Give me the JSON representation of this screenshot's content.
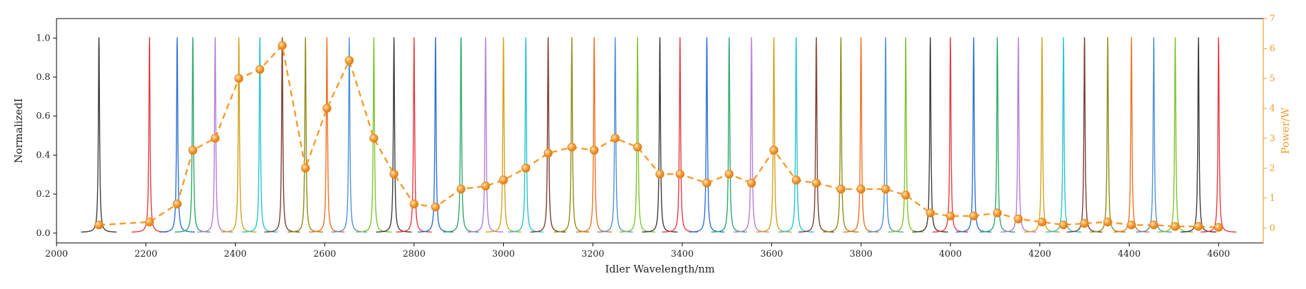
{
  "chart_data": {
    "type": "line",
    "xlabel": "Idler Wavelength/nm",
    "ylabel": "NormalizedI",
    "ylabel_right": "Power/W",
    "xlim": [
      2000,
      4700
    ],
    "ylim": [
      -0.05,
      1.1
    ],
    "ylim_right": [
      -0.5,
      7
    ],
    "x_ticks": [
      2000,
      2200,
      2400,
      2600,
      2800,
      3000,
      3200,
      3400,
      3600,
      3800,
      4000,
      4200,
      4400,
      4600
    ],
    "y_ticks": [
      0.0,
      0.2,
      0.4,
      0.6,
      0.8,
      1.0
    ],
    "y_ticks_right": [
      0,
      1,
      2,
      3,
      4,
      5,
      6,
      7
    ],
    "grid": false,
    "right_axis_color": "#f59a2a",
    "spectra": {
      "peak_wavelengths": [
        2095,
        2208,
        2270,
        2305,
        2355,
        2408,
        2455,
        2505,
        2557,
        2605,
        2655,
        2710,
        2755,
        2800,
        2848,
        2905,
        2960,
        3000,
        3050,
        3100,
        3153,
        3203,
        3250,
        3300,
        3350,
        3395,
        3455,
        3505,
        3555,
        3605,
        3655,
        3700,
        3755,
        3800,
        3855,
        3900,
        3955,
        4000,
        4052,
        4105,
        4152,
        4205,
        4253,
        4300,
        4352,
        4405,
        4455,
        4503,
        4555,
        4600
      ],
      "peak_heights": [
        1,
        1,
        1,
        1,
        1,
        1,
        1,
        1,
        1,
        1,
        1,
        1,
        1,
        1,
        1,
        1,
        1,
        1,
        1,
        1,
        1,
        1,
        1,
        1,
        1,
        1,
        1,
        1,
        1,
        1,
        1,
        1,
        1,
        1,
        1,
        1,
        1,
        1,
        1,
        1,
        1,
        1,
        1,
        1,
        1,
        1,
        1,
        1,
        1,
        1
      ],
      "colors": [
        "#3b3b3b",
        "#e8383d",
        "#2a6fd6",
        "#2aa86a",
        "#b57ad6",
        "#d4a017",
        "#22c3cf",
        "#7a3b2e",
        "#8c8c18",
        "#f0701d",
        "#4a90d9",
        "#7cc42a",
        "#3b3b3b",
        "#e8383d",
        "#2a6fd6",
        "#2aa86a",
        "#b57ad6",
        "#d4a017",
        "#22c3cf",
        "#7a3b2e",
        "#8c8c18",
        "#f0701d",
        "#4a90d9",
        "#7cc42a",
        "#3b3b3b",
        "#e8383d",
        "#2a6fd6",
        "#2aa86a",
        "#b57ad6",
        "#d4a017",
        "#22c3cf",
        "#7a3b2e",
        "#8c8c18",
        "#f0701d",
        "#4a90d9",
        "#7cc42a",
        "#3b3b3b",
        "#e8383d",
        "#2a6fd6",
        "#2aa86a",
        "#b57ad6",
        "#d4a017",
        "#22c3cf",
        "#7a3b2e",
        "#8c8c18",
        "#f0701d",
        "#4a90d9",
        "#7cc42a",
        "#3b3b3b",
        "#e8383d"
      ]
    },
    "power_series": {
      "color": "#f59a2a",
      "x": [
        2095,
        2208,
        2270,
        2305,
        2355,
        2408,
        2455,
        2505,
        2557,
        2605,
        2655,
        2710,
        2755,
        2800,
        2848,
        2905,
        2960,
        3000,
        3050,
        3100,
        3153,
        3203,
        3250,
        3300,
        3350,
        3395,
        3455,
        3505,
        3555,
        3605,
        3655,
        3700,
        3755,
        3800,
        3855,
        3900,
        3955,
        4000,
        4052,
        4105,
        4152,
        4205,
        4253,
        4300,
        4352,
        4405,
        4455,
        4503,
        4555,
        4600
      ],
      "y": [
        0.1,
        0.2,
        0.8,
        2.6,
        3.0,
        5.0,
        5.3,
        6.1,
        2.0,
        4.0,
        5.6,
        3.0,
        1.8,
        0.8,
        0.7,
        1.3,
        1.4,
        1.6,
        2.0,
        2.5,
        2.7,
        2.6,
        3.0,
        2.7,
        1.8,
        1.8,
        1.5,
        1.8,
        1.5,
        2.6,
        1.6,
        1.5,
        1.3,
        1.3,
        1.3,
        1.1,
        0.5,
        0.4,
        0.4,
        0.5,
        0.3,
        0.2,
        0.1,
        0.15,
        0.2,
        0.1,
        0.1,
        0.05,
        0.05,
        0.02
      ]
    }
  }
}
